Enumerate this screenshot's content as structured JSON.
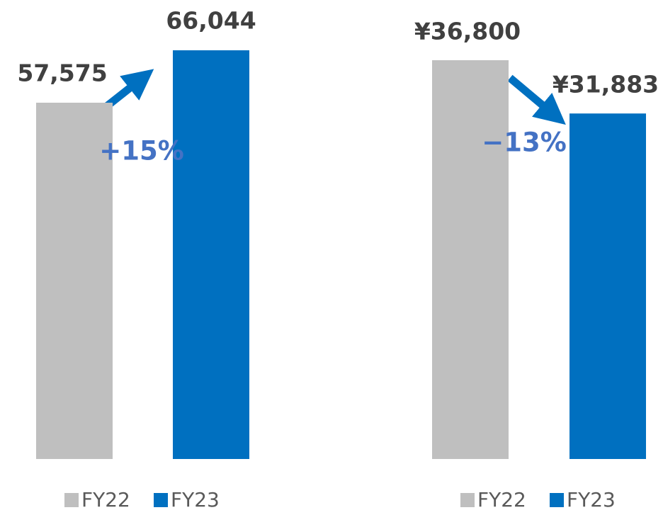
{
  "chart_data": [
    {
      "type": "bar",
      "categories": [
        null
      ],
      "series": [
        {
          "name": "FY22",
          "color": "#bfbfbf",
          "values": [
            57575
          ],
          "value_labels": [
            "57,575"
          ]
        },
        {
          "name": "FY23",
          "color": "#0070c0",
          "values": [
            66044
          ],
          "value_labels": [
            "66,044"
          ]
        }
      ],
      "annotation": "+15%"
    },
    {
      "type": "bar",
      "categories": [
        null
      ],
      "series": [
        {
          "name": "FY22",
          "color": "#bfbfbf",
          "values": [
            36800
          ],
          "value_labels": [
            "¥36,800"
          ]
        },
        {
          "name": "FY23",
          "color": "#0070c0",
          "values": [
            31883
          ],
          "value_labels": [
            "¥31,883"
          ]
        }
      ],
      "annotation": "−13%"
    }
  ]
}
